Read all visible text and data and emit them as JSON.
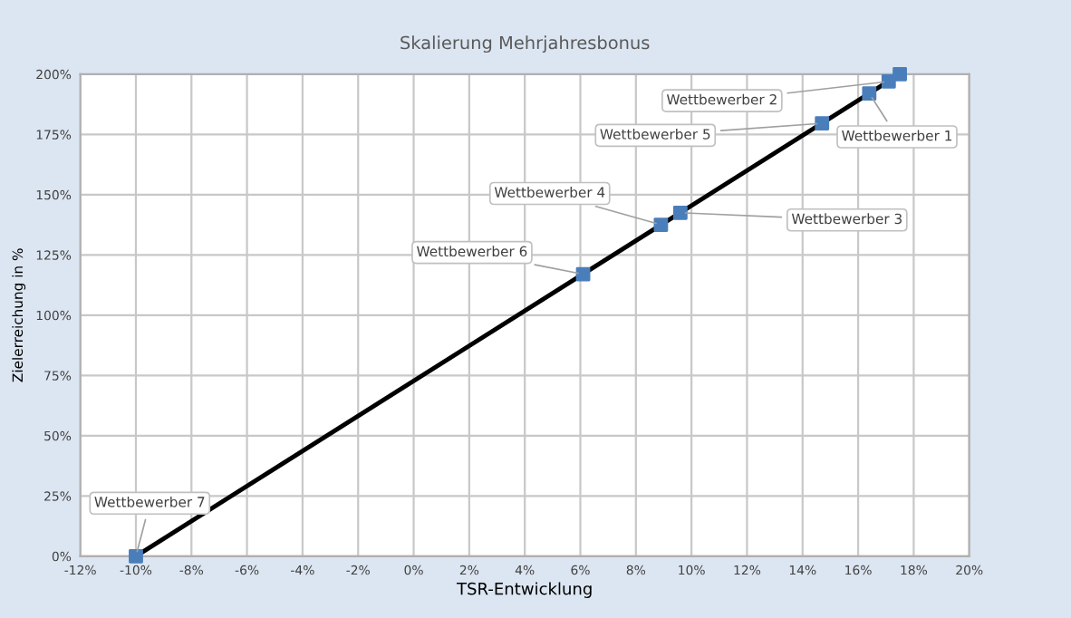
{
  "chart_data": {
    "type": "line",
    "title": "Skalierung Mehrjahresbonus",
    "xlabel": "TSR-Entwicklung",
    "ylabel": "Zielerreichung in %",
    "series": [
      {
        "color": "#000000",
        "marker": "none",
        "x": [
          -10,
          17.5
        ],
        "values": [
          0,
          200
        ]
      },
      {
        "type": "scatter",
        "color": "#4a7ebb",
        "marker": "square",
        "x": [
          -10,
          6.1,
          8.9,
          9.6,
          14.7,
          16.4,
          17.1,
          17.5
        ],
        "values": [
          0,
          117,
          137.5,
          142.5,
          179.6,
          192,
          197,
          200
        ]
      }
    ],
    "annotations": [
      {
        "text": "Wettbewerber 7",
        "x": -10,
        "y": 0
      },
      {
        "text": "Wettbewerber 6",
        "x": 6.1,
        "y": 117
      },
      {
        "text": "Wettbewerber 4",
        "x": 8.9,
        "y": 137.5
      },
      {
        "text": "Wettbewerber 3",
        "x": 9.6,
        "y": 142.5
      },
      {
        "text": "Wettbewerber 5",
        "x": 14.7,
        "y": 179.6
      },
      {
        "text": "Wettbewerber 1",
        "x": 16.4,
        "y": 192
      },
      {
        "text": "Wettbewerber 2",
        "x": 17.1,
        "y": 197
      }
    ],
    "xlim": [
      -12,
      20
    ],
    "xticks": [
      {
        "value": -12,
        "label": "-12%"
      },
      {
        "value": -10,
        "label": "-10%"
      },
      {
        "value": -8,
        "label": "-8%"
      },
      {
        "value": -6,
        "label": "-6%"
      },
      {
        "value": -4,
        "label": "-4%"
      },
      {
        "value": -2,
        "label": "-2%"
      },
      {
        "value": 0,
        "label": "0%"
      },
      {
        "value": 2,
        "label": "2%"
      },
      {
        "value": 4,
        "label": "4%"
      },
      {
        "value": 6,
        "label": "6%"
      },
      {
        "value": 8,
        "label": "8%"
      },
      {
        "value": 10,
        "label": "10%"
      },
      {
        "value": 12,
        "label": "12%"
      },
      {
        "value": 14,
        "label": "14%"
      },
      {
        "value": 16,
        "label": "16%"
      },
      {
        "value": 18,
        "label": "18%"
      },
      {
        "value": 20,
        "label": "20%"
      }
    ],
    "ylim": [
      0,
      200
    ],
    "yticks": [
      {
        "value": 0,
        "label": "0%"
      },
      {
        "value": 25,
        "label": "25%"
      },
      {
        "value": 50,
        "label": "50%"
      },
      {
        "value": 75,
        "label": "75%"
      },
      {
        "value": 100,
        "label": "100%"
      },
      {
        "value": 125,
        "label": "125%"
      },
      {
        "value": 150,
        "label": "150%"
      },
      {
        "value": 175,
        "label": "175%"
      },
      {
        "value": 200,
        "label": "200%"
      }
    ],
    "grid": true
  }
}
